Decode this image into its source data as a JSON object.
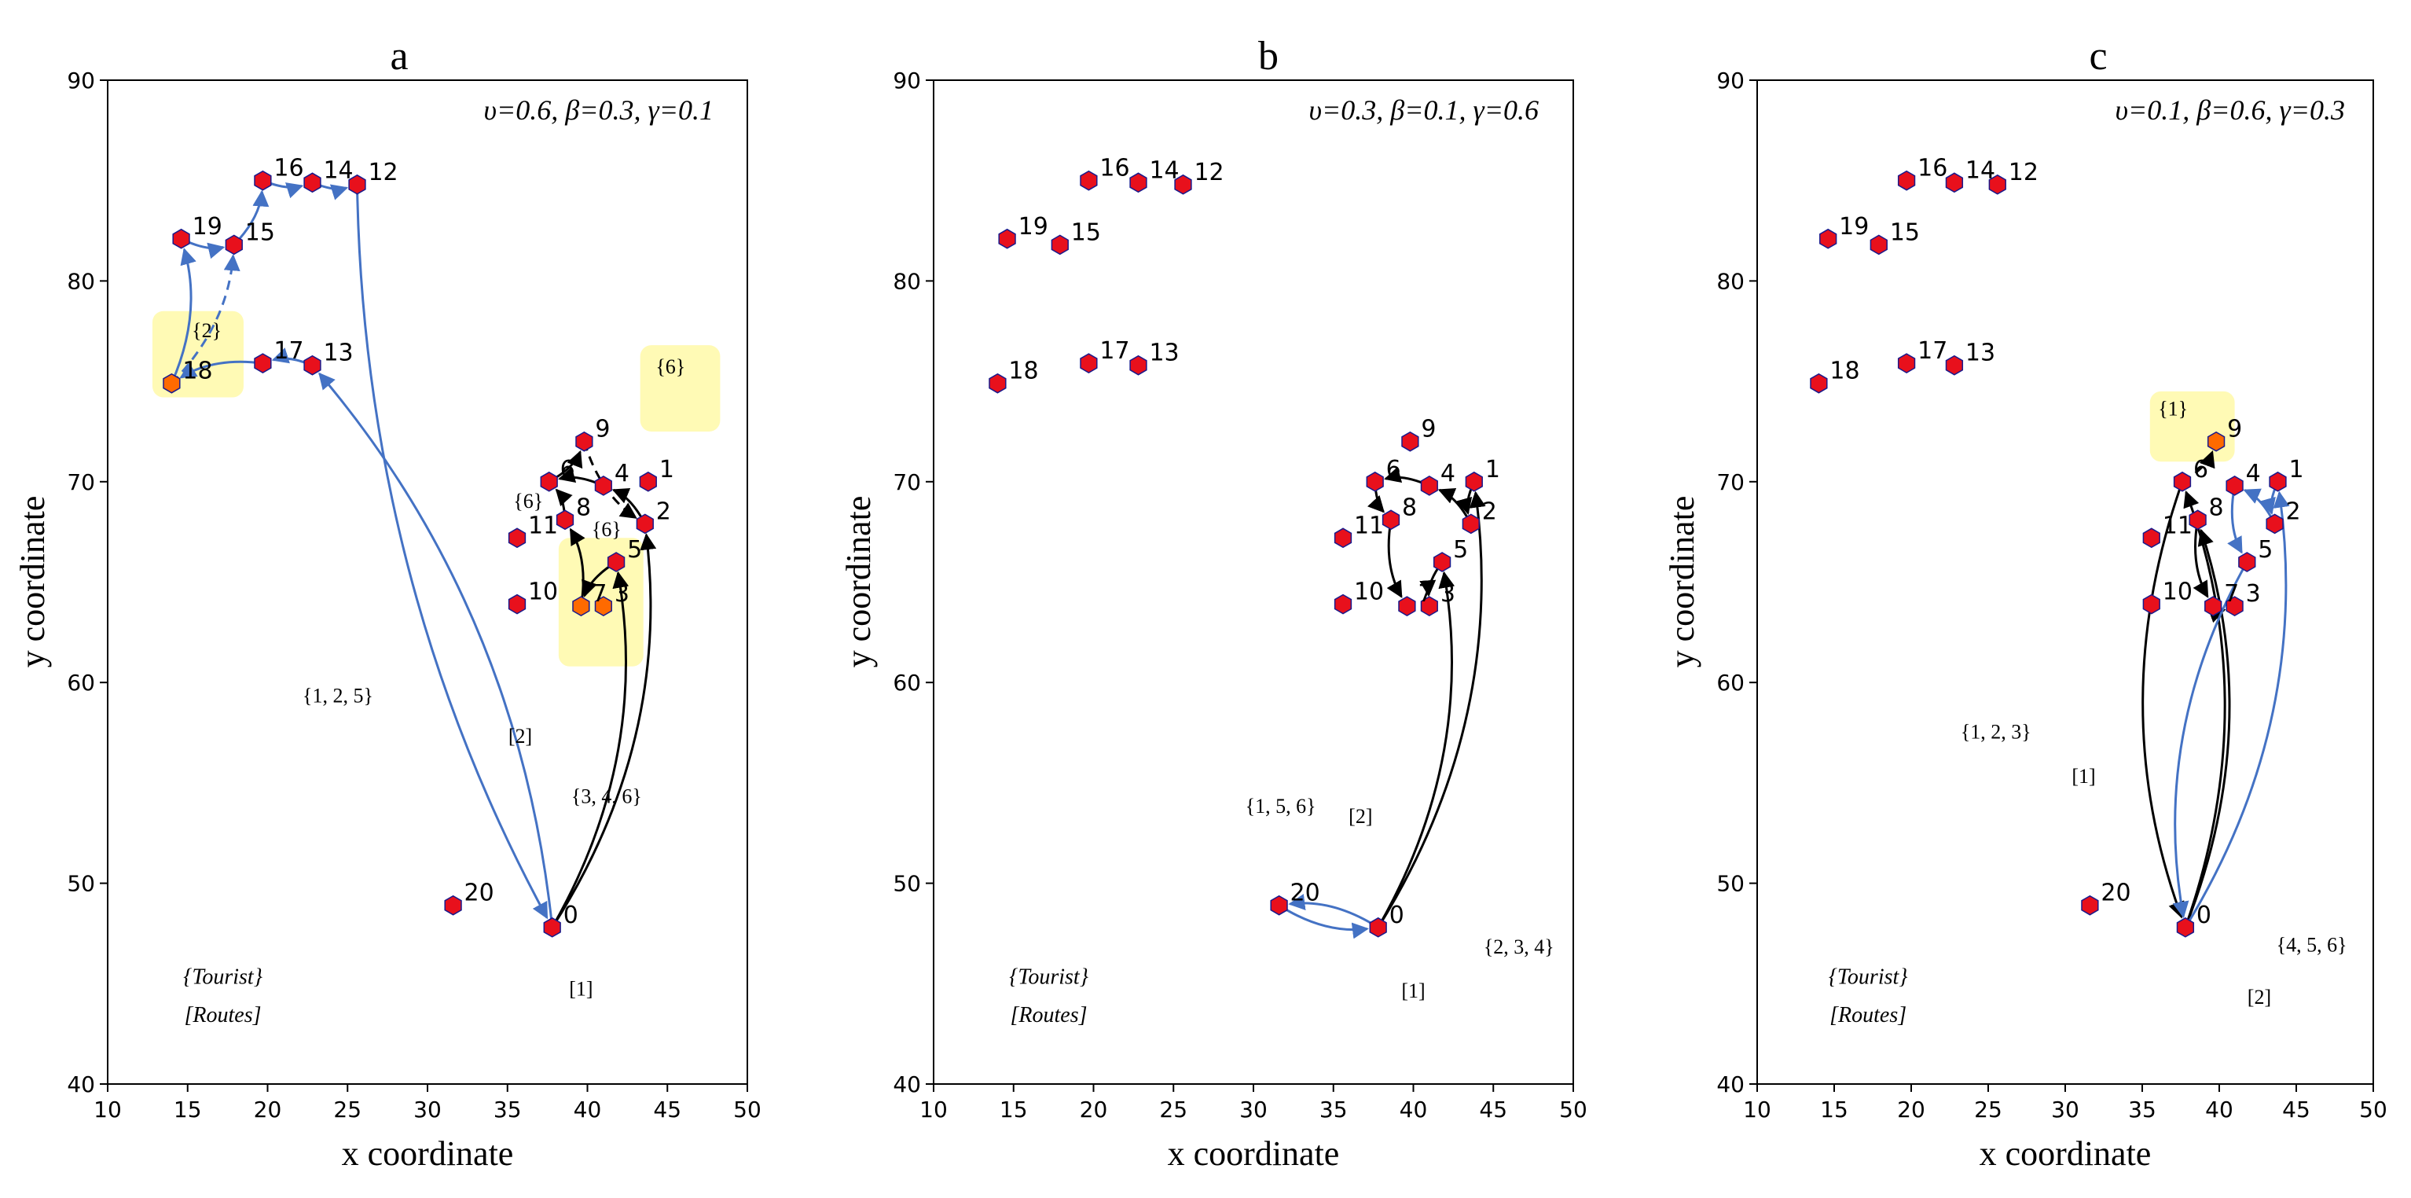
{
  "chart_data": [
    {
      "type": "scatter",
      "panel": "a",
      "title": "a",
      "params": "υ=0.6, β=0.3, γ=0.1",
      "xlabel": "x coordinate",
      "ylabel": "y coordinate",
      "xlim": [
        10,
        50
      ],
      "ylim": [
        40,
        90
      ],
      "xticks": [
        "10",
        "15",
        "20",
        "25",
        "30",
        "35",
        "40",
        "45",
        "50"
      ],
      "yticks": [
        "40",
        "50",
        "60",
        "70",
        "80",
        "90"
      ],
      "highlight_nodes": [
        "18",
        "7",
        "3"
      ],
      "shaded_regions": [
        {
          "x": [
            12.8,
            18.5
          ],
          "y": [
            74.2,
            78.5
          ]
        },
        {
          "x": [
            43.3,
            48.3
          ],
          "y": [
            72.5,
            76.8
          ]
        },
        {
          "x": [
            38.2,
            43.5
          ],
          "y": [
            60.8,
            67.2
          ]
        }
      ],
      "routes": [
        {
          "color": "#4472c4",
          "dashed": false,
          "points": [
            [
              "0"
            ],
            [
              "13"
            ],
            [
              "17"
            ],
            [
              "18"
            ],
            [
              "19"
            ],
            [
              "15"
            ],
            [
              "16"
            ],
            [
              "14"
            ],
            [
              "12"
            ],
            [
              "0"
            ]
          ]
        },
        {
          "color": "#4472c4",
          "dashed": true,
          "points": [
            [
              "18"
            ],
            [
              "15"
            ]
          ]
        },
        {
          "color": "#000000",
          "dashed": false,
          "points": [
            [
              "0"
            ],
            [
              "2"
            ],
            [
              "4"
            ],
            [
              "6"
            ],
            [
              "9"
            ]
          ]
        },
        {
          "color": "#000000",
          "dashed": false,
          "points": [
            [
              "0"
            ],
            [
              "5"
            ],
            [
              "7"
            ],
            [
              "8"
            ],
            [
              "6"
            ]
          ]
        },
        {
          "color": "#000000",
          "dashed": true,
          "points": [
            [
              "9"
            ],
            [
              "2"
            ]
          ]
        }
      ],
      "annotations": [
        {
          "text": "{2}",
          "x": 16.2,
          "y": 77.2
        },
        {
          "text": "{6}",
          "x": 45.2,
          "y": 75.4
        },
        {
          "text": "{6}",
          "x": 36.3,
          "y": 68.7
        },
        {
          "text": "{6}",
          "x": 41.2,
          "y": 67.3
        },
        {
          "text": "{1, 2, 5}",
          "x": 24.4,
          "y": 59.0
        },
        {
          "text": "[2]",
          "x": 35.8,
          "y": 57.0
        },
        {
          "text": "{3, 4, 6}",
          "x": 41.2,
          "y": 54.0
        },
        {
          "text": "[1]",
          "x": 39.6,
          "y": 44.4
        },
        {
          "text": "{Tourist}",
          "x": 17.2,
          "y": 45.0
        },
        {
          "text": "[Routes]",
          "x": 17.2,
          "y": 43.1
        }
      ]
    },
    {
      "type": "scatter",
      "panel": "b",
      "title": "b",
      "params": "υ=0.3, β=0.1, γ=0.6",
      "xlabel": "x coordinate",
      "ylabel": "y coordinate",
      "xlim": [
        10,
        50
      ],
      "ylim": [
        40,
        90
      ],
      "xticks": [
        "10",
        "15",
        "20",
        "25",
        "30",
        "35",
        "40",
        "45",
        "50"
      ],
      "yticks": [
        "40",
        "50",
        "60",
        "70",
        "80",
        "90"
      ],
      "highlight_nodes": [],
      "shaded_regions": [],
      "routes": [
        {
          "color": "#4472c4",
          "dashed": false,
          "points": [
            [
              "0"
            ],
            [
              "20"
            ],
            [
              "0"
            ]
          ]
        },
        {
          "color": "#000000",
          "dashed": false,
          "points": [
            [
              "0"
            ],
            [
              "1"
            ],
            [
              "2"
            ],
            [
              "4"
            ],
            [
              "6"
            ],
            [
              "8"
            ],
            [
              "7"
            ]
          ]
        },
        {
          "color": "#000000",
          "dashed": false,
          "points": [
            [
              "0"
            ],
            [
              "5"
            ],
            [
              "3"
            ]
          ]
        }
      ],
      "annotations": [
        {
          "text": "{1, 5, 6}",
          "x": 31.7,
          "y": 53.5
        },
        {
          "text": "[2]",
          "x": 36.7,
          "y": 53.0
        },
        {
          "text": "{2, 3, 4}",
          "x": 46.6,
          "y": 46.5
        },
        {
          "text": "[1]",
          "x": 40.0,
          "y": 44.3
        },
        {
          "text": "{Tourist}",
          "x": 17.2,
          "y": 45.0
        },
        {
          "text": "[Routes]",
          "x": 17.2,
          "y": 43.1
        }
      ]
    },
    {
      "type": "scatter",
      "panel": "c",
      "title": "c",
      "params": "υ=0.1, β=0.6, γ=0.3",
      "xlabel": "x coordinate",
      "ylabel": "y coordinate",
      "xlim": [
        10,
        50
      ],
      "ylim": [
        40,
        90
      ],
      "xticks": [
        "10",
        "15",
        "20",
        "25",
        "30",
        "35",
        "40",
        "45",
        "50"
      ],
      "yticks": [
        "40",
        "50",
        "60",
        "70",
        "80",
        "90"
      ],
      "highlight_nodes": [
        "9"
      ],
      "shaded_regions": [
        {
          "x": [
            35.5,
            41.0
          ],
          "y": [
            71.0,
            74.5
          ]
        }
      ],
      "routes": [
        {
          "color": "#000000",
          "dashed": false,
          "points": [
            [
              "0"
            ],
            [
              "6"
            ],
            [
              "0"
            ]
          ]
        },
        {
          "color": "#000000",
          "dashed": false,
          "points": [
            [
              "0"
            ],
            [
              "8"
            ],
            [
              "7"
            ],
            [
              "3"
            ]
          ]
        },
        {
          "color": "#000000",
          "dashed": true,
          "points": [
            [
              "6"
            ],
            [
              "9"
            ]
          ]
        },
        {
          "color": "#4472c4",
          "dashed": false,
          "points": [
            [
              "0"
            ],
            [
              "1"
            ],
            [
              "2"
            ],
            [
              "4"
            ],
            [
              "5"
            ],
            [
              "0"
            ]
          ]
        }
      ],
      "annotations": [
        {
          "text": "{1}",
          "x": 37.0,
          "y": 73.3
        },
        {
          "text": "{1, 2, 3}",
          "x": 25.5,
          "y": 57.2
        },
        {
          "text": "[1]",
          "x": 31.2,
          "y": 55.0
        },
        {
          "text": "{4, 5, 6}",
          "x": 46.0,
          "y": 46.6
        },
        {
          "text": "[2]",
          "x": 42.6,
          "y": 44.0
        },
        {
          "text": "{Tourist}",
          "x": 17.2,
          "y": 45.0
        },
        {
          "text": "[Routes]",
          "x": 17.2,
          "y": 43.1
        }
      ]
    }
  ],
  "nodes": [
    {
      "id": "0",
      "x": 37.8,
      "y": 47.8
    },
    {
      "id": "1",
      "x": 43.8,
      "y": 70.0
    },
    {
      "id": "2",
      "x": 43.6,
      "y": 67.9
    },
    {
      "id": "3",
      "x": 41.0,
      "y": 63.8
    },
    {
      "id": "4",
      "x": 41.0,
      "y": 69.8
    },
    {
      "id": "5",
      "x": 41.8,
      "y": 66.0
    },
    {
      "id": "6",
      "x": 37.6,
      "y": 70.0
    },
    {
      "id": "7",
      "x": 39.6,
      "y": 63.8
    },
    {
      "id": "8",
      "x": 38.6,
      "y": 68.1
    },
    {
      "id": "9",
      "x": 39.8,
      "y": 72.0
    },
    {
      "id": "10",
      "x": 35.6,
      "y": 63.9
    },
    {
      "id": "11",
      "x": 35.6,
      "y": 67.2
    },
    {
      "id": "12",
      "x": 25.6,
      "y": 84.8
    },
    {
      "id": "13",
      "x": 22.8,
      "y": 75.8
    },
    {
      "id": "14",
      "x": 22.8,
      "y": 84.9
    },
    {
      "id": "15",
      "x": 17.9,
      "y": 81.8
    },
    {
      "id": "16",
      "x": 19.7,
      "y": 85.0
    },
    {
      "id": "17",
      "x": 19.7,
      "y": 75.9
    },
    {
      "id": "18",
      "x": 14.0,
      "y": 74.9
    },
    {
      "id": "19",
      "x": 14.6,
      "y": 82.1
    },
    {
      "id": "20",
      "x": 31.6,
      "y": 48.9
    }
  ],
  "colors": {
    "node_fill": "#e8101c",
    "node_highlight": "#ff6a00",
    "node_stroke": "#1a1a8c",
    "blue_route": "#4472c4",
    "black_route": "#000000",
    "highlight_box": "#fff9a8"
  }
}
